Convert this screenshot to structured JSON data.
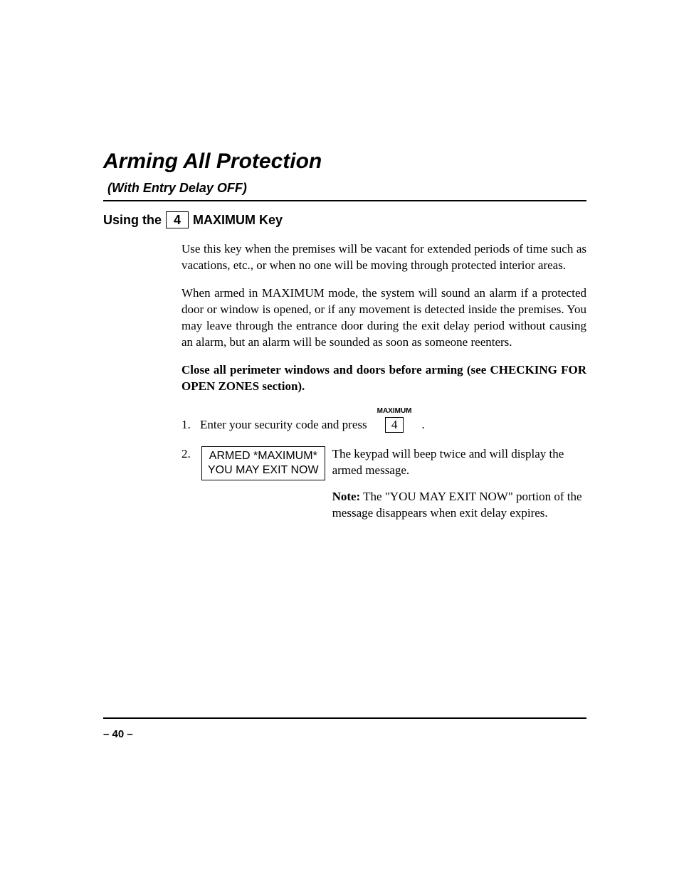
{
  "title": "Arming All Protection",
  "subtitle": "(With Entry Delay OFF)",
  "heading": {
    "prefix": "Using the",
    "key": "4",
    "suffix": "MAXIMUM Key"
  },
  "paragraphs": {
    "p1": "Use this key when the premises will be vacant for extended periods of time such as vacations, etc., or when no one will be moving through protected interior areas.",
    "p2": "When armed in MAXIMUM mode, the system will sound an alarm if a protected door or window is opened, or if any movement is detected inside the premises. You may leave through the entrance door during the exit delay period without causing an alarm, but an alarm will be sounded as soon as someone reenters.",
    "p3": "Close all perimeter windows and doors before arming (see CHECKING FOR OPEN ZONES section)."
  },
  "step1": {
    "num": "1.",
    "text": "Enter your security code and press",
    "keylabel": "MAXIMUM",
    "key": "4",
    "after": "."
  },
  "step2": {
    "num": "2.",
    "lcd_line1": "ARMED *MAXIMUM*",
    "lcd_line2": "YOU MAY EXIT NOW",
    "text": "The keypad will beep twice and will display the armed message.",
    "note_label": "Note:",
    "note_text": " The \"YOU MAY EXIT NOW\" portion of the message disappears when exit delay expires."
  },
  "page_number": "– 40 –"
}
